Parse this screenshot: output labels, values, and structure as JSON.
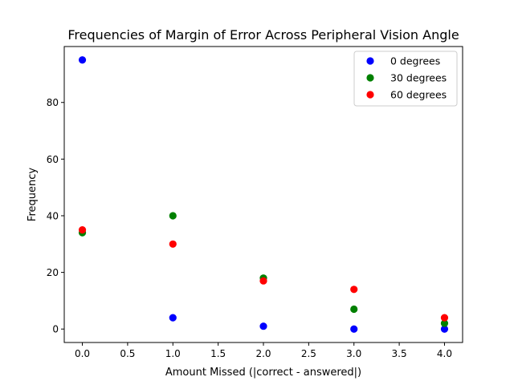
{
  "chart_data": {
    "type": "scatter",
    "title": "Frequencies of Margin of Error Across Peripheral Vision Angle",
    "xlabel": "Amount Missed (|correct - answered|)",
    "ylabel": "Frequency",
    "xlim": [
      -0.2,
      4.2
    ],
    "ylim": [
      -4.75,
      99.75
    ],
    "x_ticks": [
      0.0,
      0.5,
      1.0,
      1.5,
      2.0,
      2.5,
      3.0,
      3.5,
      4.0
    ],
    "x_tick_labels": [
      "0.0",
      "0.5",
      "1.0",
      "1.5",
      "2.0",
      "2.5",
      "3.0",
      "3.5",
      "4.0"
    ],
    "y_ticks": [
      0,
      20,
      40,
      60,
      80
    ],
    "y_tick_labels": [
      "0",
      "20",
      "40",
      "60",
      "80"
    ],
    "grid": false,
    "legend_position": "top-right",
    "x": [
      0,
      1,
      2,
      3,
      4
    ],
    "series": [
      {
        "name": "0 degrees",
        "color": "#0000ff",
        "values": [
          95,
          4,
          1,
          0,
          0
        ]
      },
      {
        "name": "30 degrees",
        "color": "#008000",
        "values": [
          34,
          40,
          18,
          7,
          2
        ]
      },
      {
        "name": "60 degrees",
        "color": "#ff0000",
        "values": [
          35,
          30,
          17,
          14,
          4
        ]
      }
    ]
  }
}
